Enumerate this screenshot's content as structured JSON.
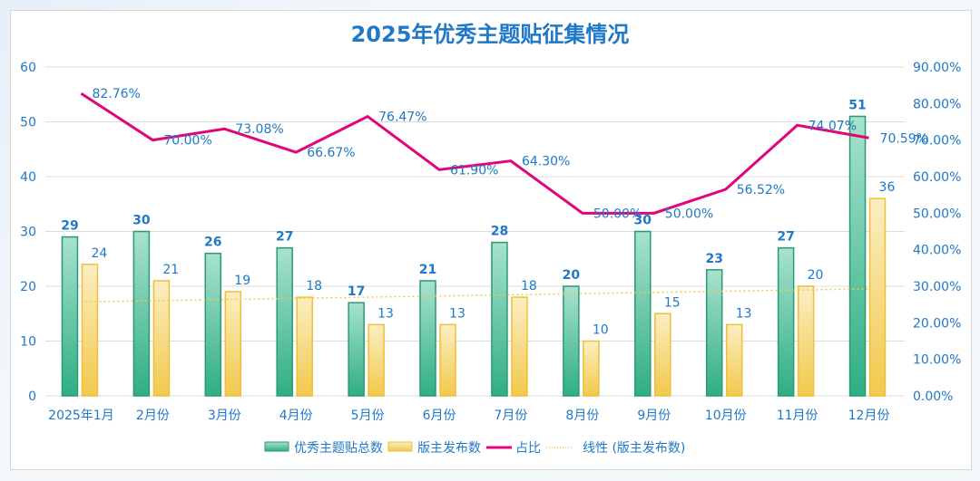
{
  "chart_data": {
    "type": "bar",
    "title": "2025年优秀主题贴征集情况",
    "categories": [
      "2025年1月",
      "2月份",
      "3月份",
      "4月份",
      "5月份",
      "6月份",
      "7月份",
      "8月份",
      "9月份",
      "10月份",
      "11月份",
      "12月份"
    ],
    "series": [
      {
        "name": "优秀主题贴总数",
        "type": "bar",
        "axis": "left",
        "color": "#2fae84",
        "values": [
          29,
          30,
          26,
          27,
          17,
          21,
          28,
          20,
          30,
          23,
          27,
          51
        ]
      },
      {
        "name": "版主发布数",
        "type": "bar",
        "axis": "left",
        "color": "#f2c94c",
        "values": [
          24,
          21,
          19,
          18,
          13,
          13,
          18,
          10,
          15,
          13,
          20,
          36
        ]
      },
      {
        "name": "占比",
        "type": "line",
        "axis": "right",
        "color": "#e0067a",
        "values": [
          82.76,
          70.0,
          73.08,
          66.67,
          76.47,
          61.9,
          64.3,
          50.0,
          50.0,
          56.52,
          74.07,
          70.59
        ],
        "labels": [
          "82.76%",
          "70.00%",
          "73.08%",
          "66.67%",
          "76.47%",
          "61.90%",
          "64.30%",
          "50.00%",
          "50.00%",
          "56.52%",
          "74.07%",
          "70.59%"
        ]
      },
      {
        "name": "线性 (版主发布数)",
        "type": "trendline",
        "of": "版主发布数",
        "color": "#f2c94c"
      }
    ],
    "y_left": {
      "ylim": [
        0,
        60
      ],
      "ticks": [
        "0",
        "10",
        "20",
        "30",
        "40",
        "50",
        "60"
      ]
    },
    "y_right": {
      "ylim": [
        0,
        90
      ],
      "ticks": [
        "0.00%",
        "10.00%",
        "20.00%",
        "30.00%",
        "40.00%",
        "50.00%",
        "60.00%",
        "70.00%",
        "80.00%",
        "90.00%"
      ]
    },
    "grid": true,
    "legend": "bottom",
    "label_color": "#1f78c8"
  }
}
